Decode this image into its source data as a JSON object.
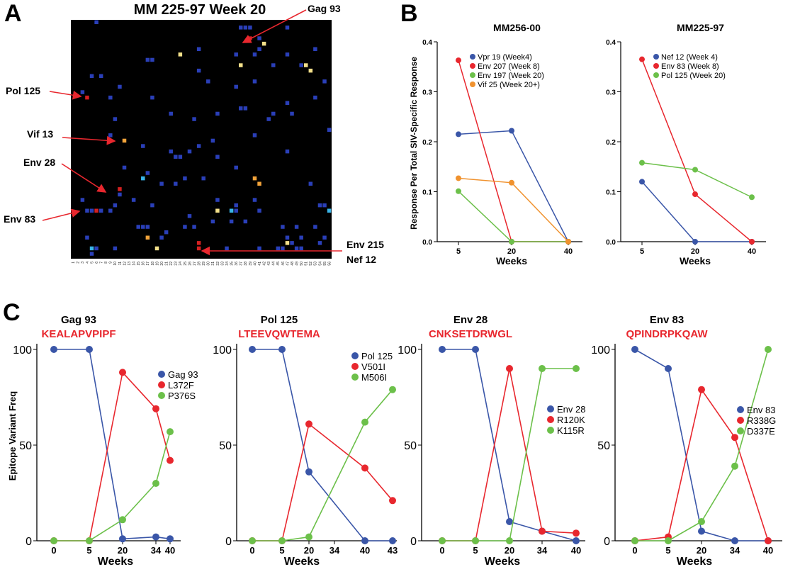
{
  "panel_letters": {
    "a": "A",
    "b": "B",
    "c": "C"
  },
  "panel_a": {
    "title": "MM 225-97 Week 20",
    "heatmap_colors": {
      "background": "#000000",
      "blue": "#2a3fb8",
      "lightblue": "#39b4e8",
      "yellow": "#f3e08a",
      "orange": "#f2a33a",
      "red": "#d42020"
    },
    "annotations": [
      {
        "id": "gag93",
        "text": "Gag 93"
      },
      {
        "id": "pol125",
        "text": "Pol 125"
      },
      {
        "id": "vif13",
        "text": "Vif 13"
      },
      {
        "id": "env28",
        "text": "Env 28"
      },
      {
        "id": "env83",
        "text": "Env 83"
      },
      {
        "id": "env215",
        "text": "Env 215"
      },
      {
        "id": "nef12",
        "text": "Nef 12"
      }
    ],
    "column_labels": [
      "1",
      "2",
      "3",
      "4",
      "5",
      "6",
      "7",
      "8",
      "9",
      "10",
      "11",
      "12",
      "13",
      "14",
      "15",
      "16",
      "17",
      "18",
      "19",
      "20",
      "21",
      "22",
      "23",
      "24",
      "25",
      "26",
      "27",
      "28",
      "29",
      "30",
      "31",
      "32",
      "33",
      "34",
      "35",
      "36",
      "37",
      "38",
      "39",
      "40",
      "41",
      "42",
      "43",
      "44",
      "45",
      "46",
      "47",
      "48",
      "49",
      "50",
      "51",
      "52",
      "53",
      "54",
      "55",
      "56"
    ],
    "cells": [
      [
        5,
        0,
        "blue"
      ],
      [
        37,
        1,
        "blue"
      ],
      [
        36,
        1,
        "blue"
      ],
      [
        38,
        1,
        "blue"
      ],
      [
        46,
        1,
        "blue"
      ],
      [
        38,
        3,
        "red"
      ],
      [
        40,
        3,
        "blue"
      ],
      [
        41,
        4,
        "yellow"
      ],
      [
        52,
        5,
        "blue"
      ],
      [
        27,
        5,
        "blue"
      ],
      [
        40,
        5,
        "blue"
      ],
      [
        35,
        6,
        "blue"
      ],
      [
        23,
        6,
        "yellow"
      ],
      [
        46,
        6,
        "blue"
      ],
      [
        39,
        6,
        "blue"
      ],
      [
        16,
        7,
        "blue"
      ],
      [
        17,
        7,
        "blue"
      ],
      [
        43,
        8,
        "blue"
      ],
      [
        36,
        8,
        "yellow"
      ],
      [
        50,
        8,
        "yellow"
      ],
      [
        49,
        8,
        "blue"
      ],
      [
        27,
        9,
        "blue"
      ],
      [
        51,
        9,
        "yellow"
      ],
      [
        4,
        10,
        "blue"
      ],
      [
        6,
        10,
        "blue"
      ],
      [
        29,
        11,
        "blue"
      ],
      [
        54,
        11,
        "blue"
      ],
      [
        39,
        11,
        "blue"
      ],
      [
        35,
        12,
        "blue"
      ],
      [
        10,
        12,
        "blue"
      ],
      [
        2,
        13,
        "blue"
      ],
      [
        3,
        14,
        "red"
      ],
      [
        8,
        14,
        "blue"
      ],
      [
        17,
        14,
        "blue"
      ],
      [
        52,
        14,
        "blue"
      ],
      [
        46,
        15,
        "blue"
      ],
      [
        36,
        16,
        "blue"
      ],
      [
        37,
        16,
        "blue"
      ],
      [
        21,
        17,
        "blue"
      ],
      [
        31,
        17,
        "blue"
      ],
      [
        47,
        17,
        "blue"
      ],
      [
        43,
        17,
        "blue"
      ],
      [
        26,
        18,
        "blue"
      ],
      [
        9,
        18,
        "blue"
      ],
      [
        42,
        18,
        "blue"
      ],
      [
        55,
        20,
        "blue"
      ],
      [
        8,
        21,
        "blue"
      ],
      [
        11,
        22,
        "orange"
      ],
      [
        39,
        21,
        "blue"
      ],
      [
        30,
        22,
        "blue"
      ],
      [
        27,
        23,
        "blue"
      ],
      [
        15,
        23,
        "blue"
      ],
      [
        25,
        24,
        "blue"
      ],
      [
        46,
        24,
        "blue"
      ],
      [
        21,
        24,
        "blue"
      ],
      [
        22,
        25,
        "blue"
      ],
      [
        23,
        25,
        "blue"
      ],
      [
        31,
        25,
        "blue"
      ],
      [
        11,
        27,
        "blue"
      ],
      [
        35,
        27,
        "blue"
      ],
      [
        16,
        28,
        "blue"
      ],
      [
        15,
        29,
        "lightblue"
      ],
      [
        28,
        29,
        "blue"
      ],
      [
        39,
        29,
        "orange"
      ],
      [
        40,
        30,
        "orange"
      ],
      [
        24,
        29,
        "blue"
      ],
      [
        19,
        30,
        "blue"
      ],
      [
        51,
        30,
        "blue"
      ],
      [
        22,
        30,
        "blue"
      ],
      [
        10,
        31,
        "red"
      ],
      [
        10,
        32,
        "blue"
      ],
      [
        2,
        33,
        "blue"
      ],
      [
        31,
        33,
        "blue"
      ],
      [
        39,
        33,
        "blue"
      ],
      [
        13,
        33,
        "blue"
      ],
      [
        53,
        34,
        "blue"
      ],
      [
        9,
        34,
        "blue"
      ],
      [
        35,
        34,
        "blue"
      ],
      [
        17,
        34,
        "blue"
      ],
      [
        3,
        35,
        "blue"
      ],
      [
        4,
        35,
        "blue"
      ],
      [
        5,
        35,
        "red"
      ],
      [
        6,
        35,
        "blue"
      ],
      [
        8,
        35,
        "blue"
      ],
      [
        31,
        35,
        "yellow"
      ],
      [
        34,
        35,
        "lightblue"
      ],
      [
        35,
        35,
        "blue"
      ],
      [
        40,
        35,
        "blue"
      ],
      [
        55,
        35,
        "lightblue"
      ],
      [
        54,
        34,
        "blue"
      ],
      [
        25,
        36,
        "blue"
      ],
      [
        34,
        37,
        "blue"
      ],
      [
        37,
        37,
        "blue"
      ],
      [
        30,
        37,
        "blue"
      ],
      [
        14,
        38,
        "blue"
      ],
      [
        15,
        38,
        "blue"
      ],
      [
        16,
        38,
        "blue"
      ],
      [
        24,
        38,
        "blue"
      ],
      [
        26,
        38,
        "blue"
      ],
      [
        45,
        38,
        "blue"
      ],
      [
        48,
        38,
        "blue"
      ],
      [
        52,
        38,
        "blue"
      ],
      [
        20,
        39,
        "blue"
      ],
      [
        19,
        40,
        "blue"
      ],
      [
        3,
        40,
        "blue"
      ],
      [
        16,
        40,
        "orange"
      ],
      [
        49,
        40,
        "blue"
      ],
      [
        54,
        40,
        "blue"
      ],
      [
        4,
        42,
        "lightblue"
      ],
      [
        18,
        42,
        "yellow"
      ],
      [
        27,
        42,
        "red"
      ],
      [
        27,
        41,
        "red"
      ],
      [
        40,
        42,
        "blue"
      ],
      [
        44,
        42,
        "blue"
      ],
      [
        45,
        42,
        "blue"
      ],
      [
        46,
        41,
        "yellow"
      ],
      [
        46,
        40,
        "blue"
      ],
      [
        4,
        43,
        "blue"
      ],
      [
        5,
        42,
        "blue"
      ],
      [
        9,
        42,
        "blue"
      ],
      [
        33,
        42,
        "blue"
      ],
      [
        47,
        41,
        "blue"
      ],
      [
        48,
        42,
        "blue"
      ],
      [
        49,
        42,
        "blue"
      ],
      [
        53,
        41,
        "blue"
      ]
    ]
  },
  "panel_b": {
    "ylabel": "Response Per Total SIV-Specific Response",
    "charts": [
      {
        "title": "MM256-00",
        "xlabel": "Weeks",
        "x": [
          5,
          20,
          40
        ],
        "yticks": [
          "0.0",
          "0.1",
          "0.2",
          "0.3",
          "0.4"
        ],
        "ylim": [
          0,
          0.4
        ],
        "series": [
          {
            "name": "Vpr 19 (Week4)",
            "color": "#3a56a8",
            "values": [
              0.215,
              0.222,
              0.0
            ]
          },
          {
            "name": "Env 207 (Week 8)",
            "color": "#e8272e",
            "values": [
              0.363,
              0.0,
              0.0
            ]
          },
          {
            "name": "Env 197 (Week 20)",
            "color": "#6cc04a",
            "values": [
              0.101,
              0.0,
              0.0
            ]
          },
          {
            "name": "Vif 25 (Week 20+)",
            "color": "#f0922e",
            "values": [
              0.127,
              0.118,
              0.0
            ]
          }
        ]
      },
      {
        "title": "MM225-97",
        "xlabel": "Weeks",
        "x": [
          5,
          20,
          40
        ],
        "yticks": [
          "0.0",
          "0.1",
          "0.2",
          "0.3",
          "0.4"
        ],
        "ylim": [
          0,
          0.4
        ],
        "series": [
          {
            "name": "Nef 12 (Week 4)",
            "color": "#3a56a8",
            "values": [
              0.12,
              0.0,
              0.0
            ]
          },
          {
            "name": "Env 83 (Week 8)",
            "color": "#e8272e",
            "values": [
              0.365,
              0.095,
              0.0
            ]
          },
          {
            "name": "Pol 125 (Week 20)",
            "color": "#6cc04a",
            "values": [
              0.158,
              0.144,
              0.089
            ]
          }
        ]
      }
    ]
  },
  "chart_data": [
    {
      "type": "line",
      "title": "Gag 93",
      "subtitle": "KEALAPVPIPF",
      "xlabel": "Weeks",
      "ylabel": "Epitope Variant Freq",
      "x": [
        "0",
        "5",
        "20",
        "34",
        "40"
      ],
      "ylim": [
        0,
        100
      ],
      "series": [
        {
          "name": "Gag 93",
          "color": "#3a56a8",
          "values": [
            100,
            100,
            1,
            2,
            1
          ]
        },
        {
          "name": "L372F",
          "color": "#e8272e",
          "values": [
            0,
            0,
            88,
            69,
            42
          ]
        },
        {
          "name": "P376S",
          "color": "#6cc04a",
          "values": [
            0,
            0,
            11,
            30,
            57
          ]
        }
      ]
    },
    {
      "type": "line",
      "title": "Pol 125",
      "subtitle": "LTEEVQWTEMA",
      "xlabel": "",
      "ylabel": "",
      "x": [
        "0",
        "5",
        "20",
        "34",
        "40",
        "43"
      ],
      "ylim": [
        0,
        100
      ],
      "series": [
        {
          "name": "Pol 125",
          "color": "#3a56a8",
          "values": [
            100,
            100,
            36,
            null,
            0,
            0
          ]
        },
        {
          "name": "V501I",
          "color": "#e8272e",
          "values": [
            0,
            0,
            61,
            null,
            38,
            21
          ]
        },
        {
          "name": "M506I",
          "color": "#6cc04a",
          "values": [
            0,
            0,
            2,
            null,
            62,
            79
          ]
        }
      ]
    },
    {
      "type": "line",
      "title": "Env 28",
      "subtitle": "CNKSETDRWGL",
      "xlabel": "",
      "ylabel": "",
      "x": [
        "0",
        "5",
        "20",
        "34",
        "40"
      ],
      "ylim": [
        0,
        100
      ],
      "series": [
        {
          "name": "Env 28",
          "color": "#3a56a8",
          "values": [
            100,
            100,
            10,
            5,
            0
          ]
        },
        {
          "name": "R120K",
          "color": "#e8272e",
          "values": [
            0,
            0,
            90,
            5,
            4
          ]
        },
        {
          "name": "K115R",
          "color": "#6cc04a",
          "values": [
            0,
            0,
            0,
            90,
            90
          ]
        }
      ]
    },
    {
      "type": "line",
      "title": "Env 83",
      "subtitle": "QPINDRPKQAW",
      "xlabel": "Weeks",
      "ylabel": "",
      "x": [
        "0",
        "5",
        "20",
        "34",
        "40"
      ],
      "ylim": [
        0,
        100
      ],
      "series": [
        {
          "name": "Env 83",
          "color": "#3a56a8",
          "values": [
            100,
            90,
            5,
            0,
            0
          ]
        },
        {
          "name": "R338G",
          "color": "#e8272e",
          "values": [
            0,
            2,
            79,
            54,
            0
          ]
        },
        {
          "name": "D337E",
          "color": "#6cc04a",
          "values": [
            0,
            0,
            10,
            39,
            100
          ]
        }
      ]
    }
  ],
  "panel_c_axis": {
    "yticks": [
      "0",
      "50",
      "100"
    ]
  },
  "colors": {
    "blue": "#3a56a8",
    "red": "#e8272e",
    "green": "#6cc04a",
    "orange": "#f0922e",
    "title_red": "#e8272e"
  }
}
